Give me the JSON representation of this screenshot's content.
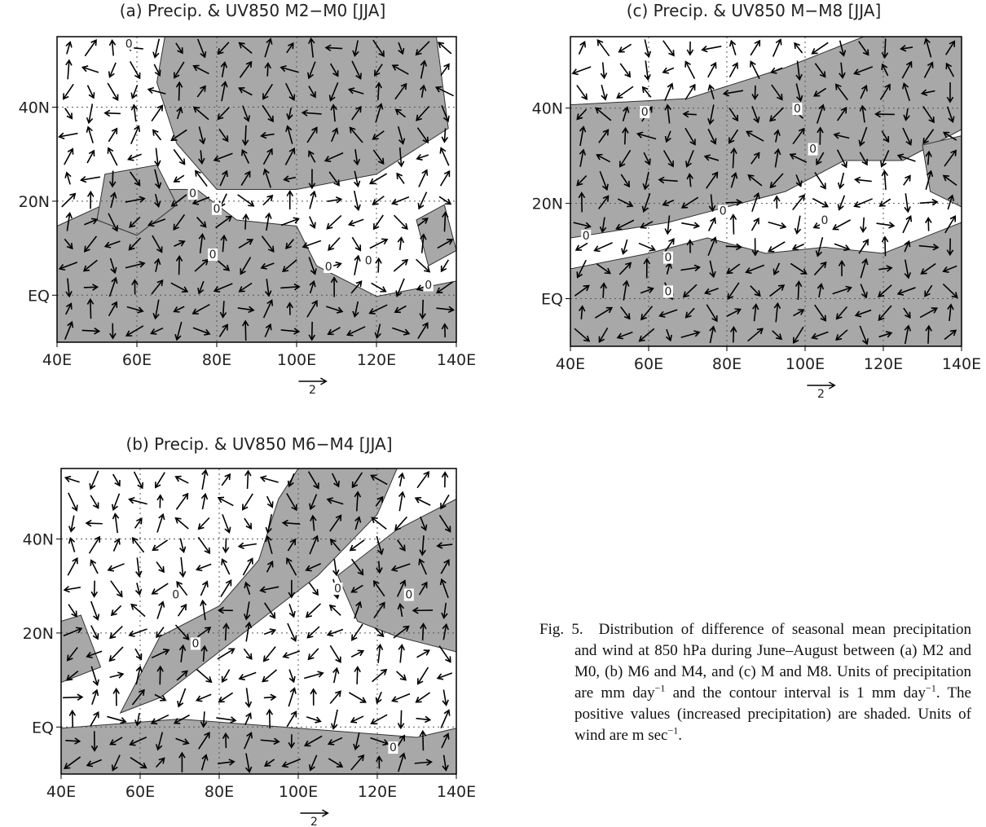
{
  "panels": [
    {
      "title": "(a) Precip. & UV850 M2−M0 [JJA]",
      "lat_ticks": [
        "40N",
        "20N",
        "EQ"
      ],
      "lon_ticks": [
        "40E",
        "60E",
        "80E",
        "100E",
        "120E",
        "140E"
      ],
      "scale_label": "2",
      "contour_labels": [
        "0",
        "0",
        "0",
        "0",
        "0",
        "0",
        "0"
      ]
    },
    {
      "title": "(c) Precip. & UV850 M−M8 [JJA]",
      "lat_ticks": [
        "40N",
        "20N",
        "EQ"
      ],
      "lon_ticks": [
        "40E",
        "60E",
        "80E",
        "100E",
        "120E",
        "140E"
      ],
      "scale_label": "2",
      "contour_labels": [
        "0",
        "0",
        "0",
        "0",
        "0",
        "0",
        "0",
        "0"
      ]
    },
    {
      "title": "(b) Precip. & UV850 M6−M4 [JJA]",
      "lat_ticks": [
        "40N",
        "20N",
        "EQ"
      ],
      "lon_ticks": [
        "40E",
        "60E",
        "80E",
        "100E",
        "120E",
        "140E"
      ],
      "scale_label": "2",
      "contour_labels": [
        "0",
        "0",
        "0",
        "0",
        "0"
      ]
    }
  ],
  "caption": {
    "label": "Fig. 5.",
    "parts": [
      "Distribution of difference of seasonal mean precipitation and wind at 850 hPa during June–August between (a) M2 and M0, (b) M6 and M4, and (c) M and M8. Units of precipitation are mm day",
      "−1",
      " and the contour interval is 1 mm day",
      "−1",
      ". The positive values (increased precipitation) are shaded. Units of wind are m sec",
      "−1",
      "."
    ]
  }
}
